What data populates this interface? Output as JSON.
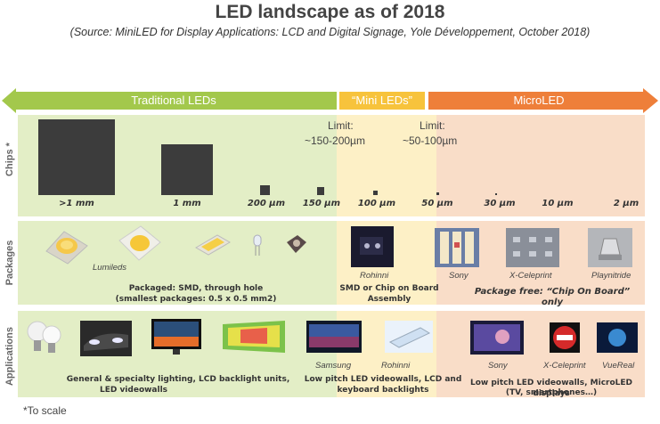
{
  "title": "LED landscape as of 2018",
  "subtitle": "(Source: MiniLED for Display Applications: LCD and Digital Signage, Yole Développement, October 2018)",
  "segments": {
    "traditional": "Traditional LEDs",
    "mini": "“Mini LEDs”",
    "micro": "MicroLED"
  },
  "row_labels": {
    "chips": "Chips *",
    "packages": "Packages",
    "applications": "Applications"
  },
  "chip_sizes": [
    ">1 mm",
    "1 mm",
    "200 µm",
    "150 µm",
    "100 µm",
    "50 µm",
    "30 µm",
    "10 µm",
    "2 µm"
  ],
  "limits": {
    "mini": {
      "line1": "Limit:",
      "line2": "~150-200µm"
    },
    "micro": {
      "line1": "Limit:",
      "line2": "~50-100µm"
    }
  },
  "packages": {
    "lumileds": "Lumileds",
    "rohinni": "Rohinni",
    "sony": "Sony",
    "xceleprint": "X-Celeprint",
    "playnitride": "Playnitride",
    "traditional_caption_1": "Packaged: SMD, through hole",
    "traditional_caption_2": "(smallest packages: 0.5 x 0.5 mm2)",
    "mini_caption_1": "SMD or Chip on Board",
    "mini_caption_2": "Assembly",
    "micro_caption": "Package free: “Chip On Board” only"
  },
  "applications": {
    "samsung": "Samsung",
    "rohinni": "Rohinni",
    "sony": "Sony",
    "xceleprint": "X-Celeprint",
    "vuereal": "VueReal",
    "traditional_caption_1": "General & specialty lighting, LCD backlight units,",
    "traditional_caption_2": "LED videowalls",
    "mini_caption_1": "Low pitch LED videowalls, LCD and",
    "mini_caption_2": "keyboard  backlights",
    "micro_caption_1": "Low pitch LED videowalls, MicroLED displays",
    "micro_caption_2": "(TV, smartphones…)"
  },
  "footnote": "*To scale",
  "colors": {
    "traditional": "#a3c84c",
    "mini": "#f7c33c",
    "micro": "#ee7f3a",
    "chip": "#3c3c3c"
  }
}
